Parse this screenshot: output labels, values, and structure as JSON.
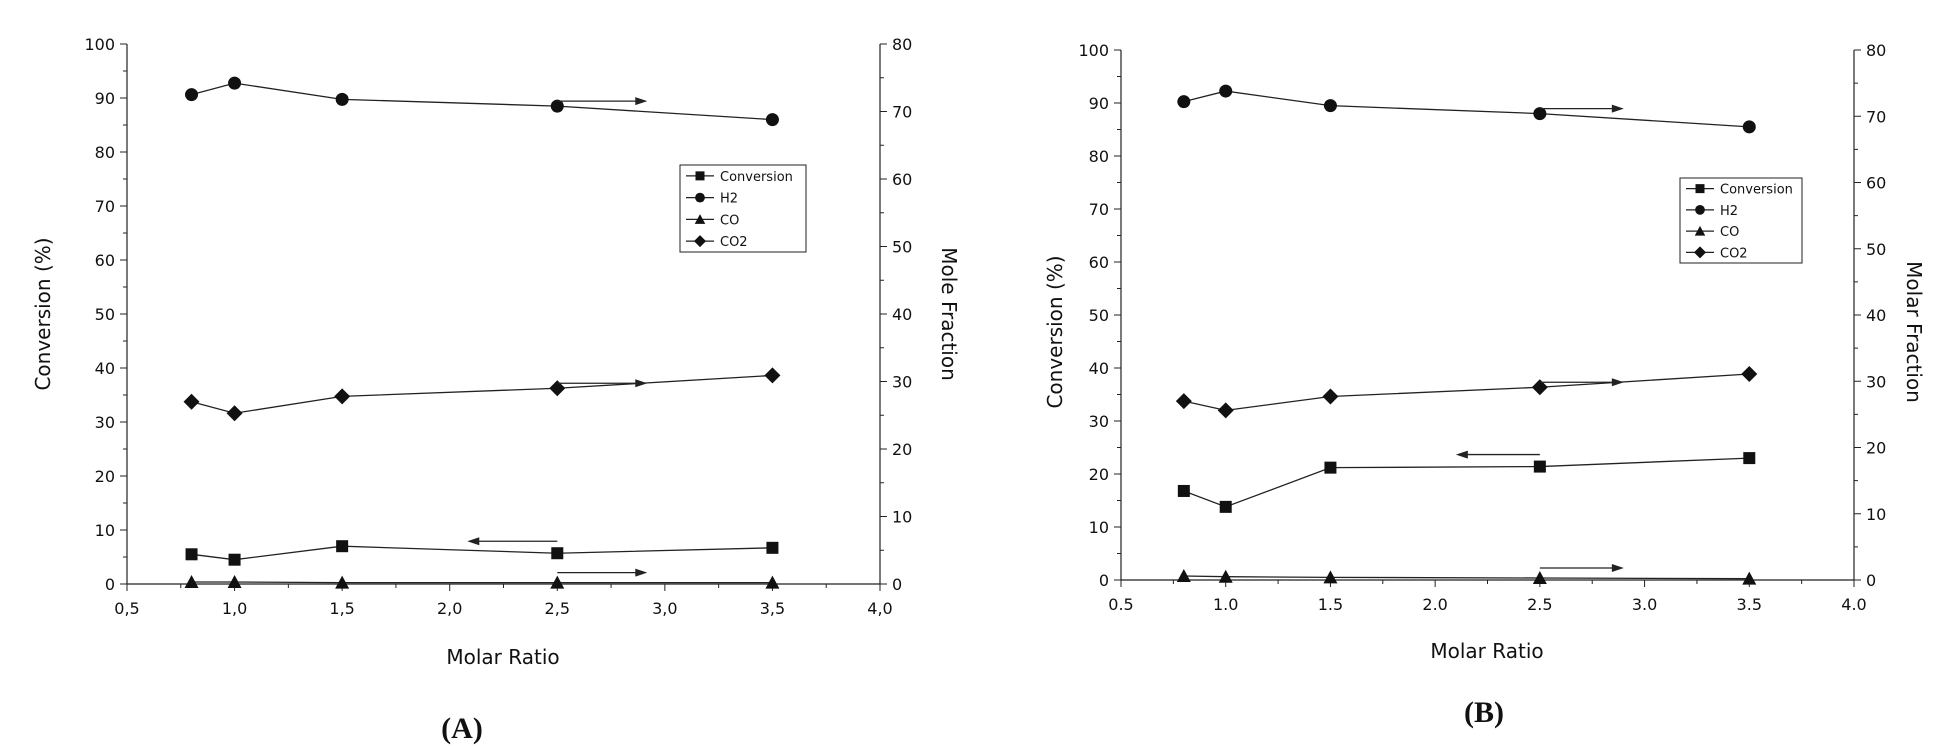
{
  "chart_data": [
    {
      "type": "line",
      "panel_label": "(A)",
      "xlabel": "Molar Ratio",
      "ylabel": "Conversion (%)",
      "ylabel_right": "Mole Fraction",
      "xlim": [
        0.5,
        4.0
      ],
      "ylim": [
        0,
        100
      ],
      "ylim_right": [
        0,
        80
      ],
      "x_ticks": [
        0.5,
        1.0,
        1.5,
        2.0,
        2.5,
        3.0,
        3.5,
        4.0
      ],
      "x_tick_labels": [
        "0,5",
        "1,0",
        "1,5",
        "2,0",
        "2,5",
        "3,0",
        "3,5",
        "4,0"
      ],
      "y_ticks": [
        0,
        10,
        20,
        30,
        40,
        50,
        60,
        70,
        80,
        90,
        100
      ],
      "y_tick_labels": [
        "0",
        "10",
        "20",
        "30",
        "40",
        "50",
        "60",
        "70",
        "80",
        "90",
        "100"
      ],
      "y_right_ticks": [
        0,
        10,
        20,
        30,
        40,
        50,
        60,
        70,
        80
      ],
      "y_right_tick_labels": [
        "0",
        "10",
        "20",
        "30",
        "40",
        "50",
        "60",
        "70",
        "80"
      ],
      "x": [
        0.8,
        1.0,
        1.5,
        2.5,
        3.5
      ],
      "series": [
        {
          "name": "Conversion",
          "marker": "square",
          "axis": "left",
          "values": [
            5.5,
            4.5,
            7.0,
            5.7,
            6.7
          ]
        },
        {
          "name": "H2",
          "marker": "circle",
          "axis": "right",
          "values": [
            72.5,
            74.2,
            71.8,
            70.8,
            68.8
          ]
        },
        {
          "name": "CO",
          "marker": "triangle",
          "axis": "right",
          "values": [
            0.3,
            0.3,
            0.2,
            0.2,
            0.2
          ]
        },
        {
          "name": "CO2",
          "marker": "diamond",
          "axis": "right",
          "values": [
            27.0,
            25.3,
            27.8,
            29.0,
            30.9
          ]
        }
      ],
      "legend_position": "upper-right",
      "annotations": [
        {
          "series": "H2",
          "direction": "right"
        },
        {
          "series": "CO2",
          "direction": "right"
        },
        {
          "series": "Conversion",
          "direction": "left"
        },
        {
          "series": "CO",
          "direction": "right"
        }
      ]
    },
    {
      "type": "line",
      "panel_label": "(B)",
      "xlabel": "Molar Ratio",
      "ylabel": "Conversion (%)",
      "ylabel_right": "Molar Fraction",
      "xlim": [
        0.5,
        4.0
      ],
      "ylim": [
        0,
        100
      ],
      "ylim_right": [
        0,
        80
      ],
      "x_ticks": [
        0.5,
        1.0,
        1.5,
        2.0,
        2.5,
        3.0,
        3.5,
        4.0
      ],
      "x_tick_labels": [
        "0.5",
        "1.0",
        "1.5",
        "2.0",
        "2.5",
        "3.0",
        "3.5",
        "4.0"
      ],
      "y_ticks": [
        0,
        10,
        20,
        30,
        40,
        50,
        60,
        70,
        80,
        90,
        100
      ],
      "y_tick_labels": [
        "0",
        "10",
        "20",
        "30",
        "40",
        "50",
        "60",
        "70",
        "80",
        "90",
        "100"
      ],
      "y_right_ticks": [
        0,
        10,
        20,
        30,
        40,
        50,
        60,
        70,
        80
      ],
      "y_right_tick_labels": [
        "0",
        "10",
        "20",
        "30",
        "40",
        "50",
        "60",
        "70",
        "80"
      ],
      "x": [
        0.8,
        1.0,
        1.5,
        2.5,
        3.5
      ],
      "series": [
        {
          "name": "Conversion",
          "marker": "square",
          "axis": "left",
          "values": [
            16.8,
            13.8,
            21.2,
            21.4,
            23.0
          ]
        },
        {
          "name": "H2",
          "marker": "circle",
          "axis": "right",
          "values": [
            72.2,
            73.8,
            71.6,
            70.4,
            68.4
          ]
        },
        {
          "name": "CO",
          "marker": "triangle",
          "axis": "right",
          "values": [
            0.6,
            0.5,
            0.4,
            0.3,
            0.2
          ]
        },
        {
          "name": "CO2",
          "marker": "diamond",
          "axis": "right",
          "values": [
            27.0,
            25.6,
            27.7,
            29.1,
            31.1
          ]
        }
      ],
      "legend_position": "upper-right",
      "annotations": [
        {
          "series": "H2",
          "direction": "right"
        },
        {
          "series": "CO2",
          "direction": "right"
        },
        {
          "series": "Conversion",
          "direction": "left"
        },
        {
          "series": "CO",
          "direction": "right"
        }
      ]
    }
  ]
}
